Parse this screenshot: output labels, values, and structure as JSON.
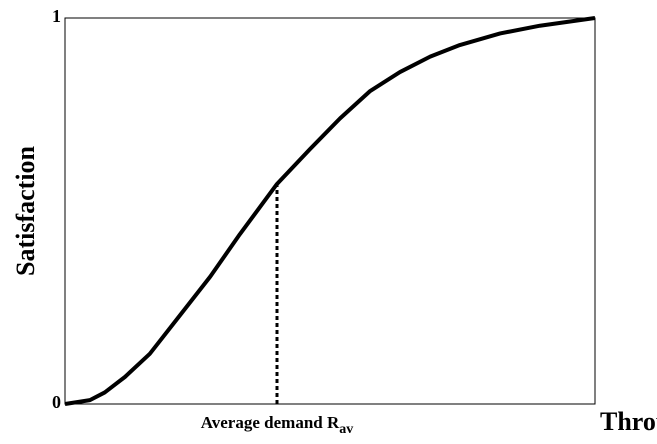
{
  "chart_data": {
    "type": "line",
    "xlabel": "Throughput",
    "ylabel": "Satisfaction",
    "x": [
      0,
      0.047,
      0.075,
      0.113,
      0.16,
      0.217,
      0.274,
      0.33,
      0.4,
      0.462,
      0.519,
      0.575,
      0.632,
      0.689,
      0.745,
      0.821,
      0.896,
      1.0
    ],
    "values": [
      0,
      0.01,
      0.03,
      0.07,
      0.13,
      0.23,
      0.33,
      0.44,
      0.57,
      0.66,
      0.74,
      0.81,
      0.86,
      0.9,
      0.93,
      0.96,
      0.98,
      1.0
    ],
    "color": "#000000",
    "xlim": [
      0,
      1
    ],
    "ylim": [
      0,
      1
    ],
    "yticks": [
      0,
      1
    ],
    "grid": false,
    "annotation": {
      "text": "Average demand R",
      "subscript": "av",
      "x": 0.4,
      "y": 0.57
    }
  }
}
